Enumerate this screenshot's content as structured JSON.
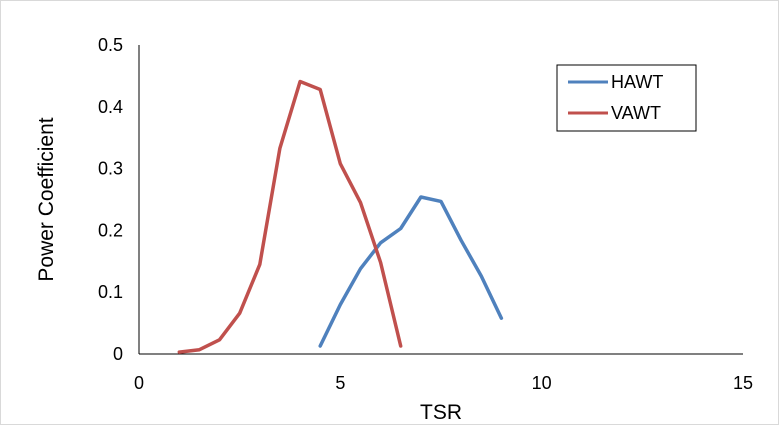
{
  "chart_data": {
    "type": "line",
    "title": "",
    "xlabel": "TSR",
    "ylabel": "Power Coefficient",
    "xlim": [
      0,
      15
    ],
    "ylim": [
      0,
      0.5
    ],
    "x_ticks": [
      "0",
      "5",
      "10",
      "15"
    ],
    "y_ticks": [
      "0",
      "0.1",
      "0.2",
      "0.3",
      "0.4",
      "0.5"
    ],
    "grid": false,
    "legend_position": "top-right",
    "series": [
      {
        "name": "HAWT",
        "color": "#4f81bd",
        "x": [
          4.5,
          5.0,
          5.5,
          6.0,
          6.5,
          7.0,
          7.5,
          8.0,
          8.5,
          9.0
        ],
        "y": [
          0.013,
          0.08,
          0.138,
          0.18,
          0.203,
          0.254,
          0.247,
          0.184,
          0.126,
          0.058
        ]
      },
      {
        "name": "VAWT",
        "color": "#c0504d",
        "x": [
          1.0,
          1.5,
          2.0,
          2.5,
          3.0,
          3.5,
          4.0,
          4.5,
          5.0,
          5.5,
          6.0,
          6.5
        ],
        "y": [
          0.003,
          0.007,
          0.023,
          0.066,
          0.145,
          0.333,
          0.441,
          0.428,
          0.308,
          0.245,
          0.148,
          0.013
        ]
      }
    ]
  }
}
